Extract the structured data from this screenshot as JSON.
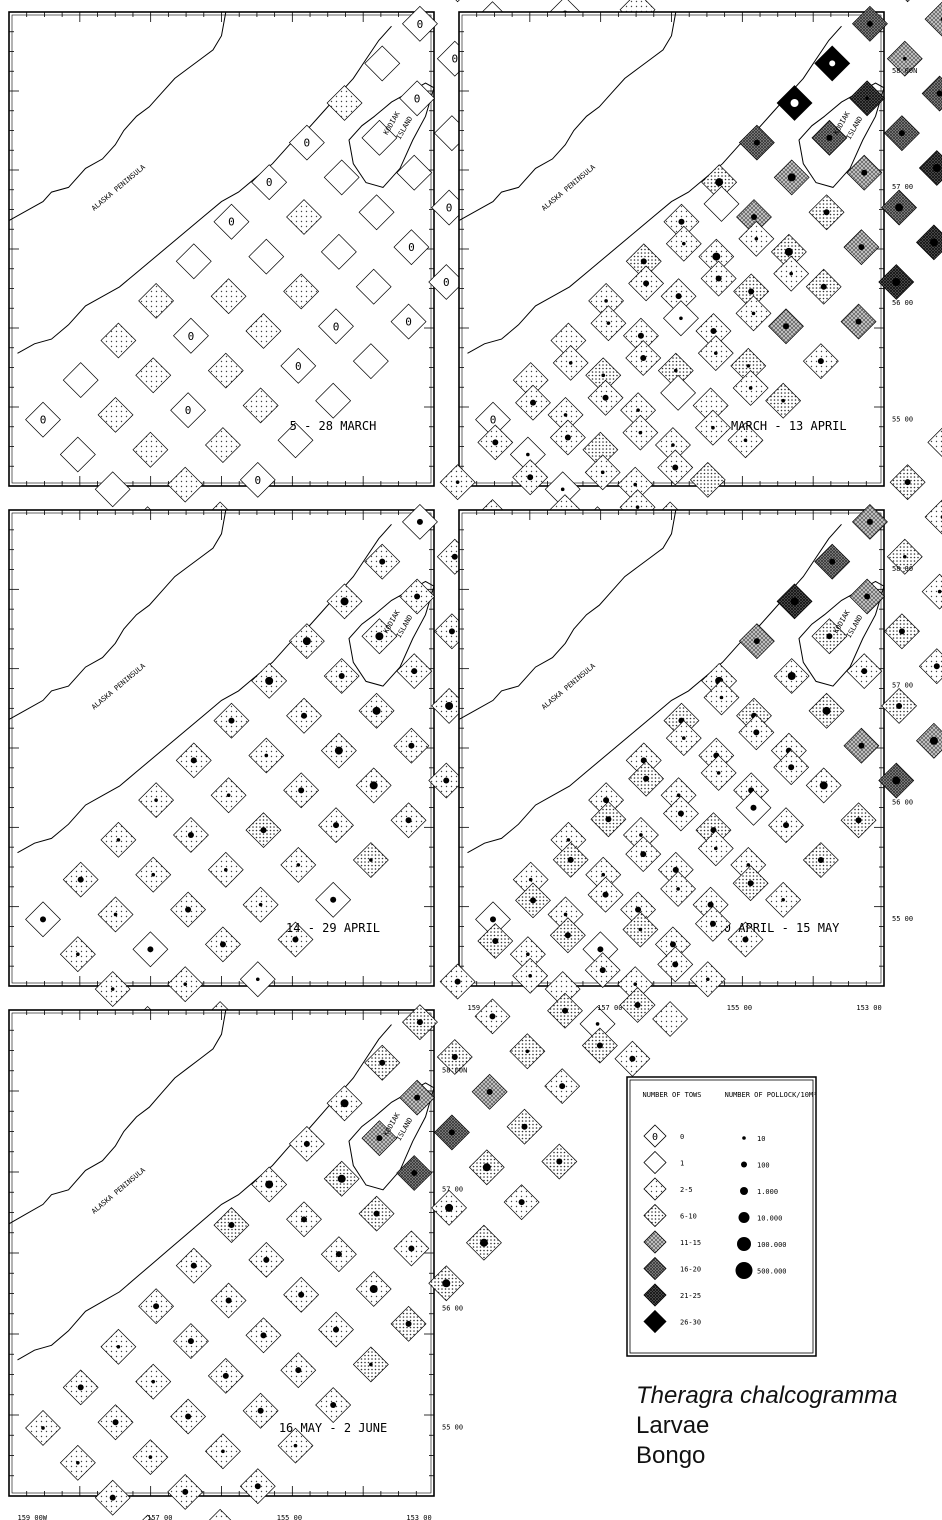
{
  "panels": [
    {
      "id": "panel-1",
      "date_label": "5 - 28 MARCH",
      "lat_labels": [],
      "lon_labels": [],
      "counts": [
        0,
        1,
        1,
        1,
        1,
        1,
        2,
        2,
        2,
        2,
        2,
        2,
        0,
        2,
        0,
        2,
        0,
        2,
        2,
        1,
        1,
        2,
        2,
        0,
        1,
        0,
        1,
        2,
        0,
        1,
        0,
        2,
        1,
        1,
        0,
        0,
        1,
        1,
        0,
        0,
        2,
        1,
        1,
        0,
        2,
        1,
        0,
        1,
        0,
        2,
        0,
        0,
        1,
        2,
        1,
        0,
        1,
        0,
        1,
        2,
        2,
        0,
        1,
        0,
        0,
        1,
        2,
        0,
        1,
        0,
        0,
        2,
        0,
        1,
        0,
        1,
        0,
        0,
        0,
        0,
        0,
        0,
        0,
        0,
        0,
        0
      ],
      "density": []
    },
    {
      "id": "panel-2",
      "date_label": "29 MARCH - 13 APRIL",
      "lat_labels": [
        "58 00N",
        "57 00",
        "56 00",
        "55 00"
      ],
      "lon_labels": [],
      "counts": [
        0,
        1,
        1,
        1,
        1,
        2,
        2,
        3,
        2,
        2,
        2,
        3,
        2,
        2,
        3,
        2,
        2,
        3,
        2,
        2,
        3,
        2,
        2,
        3,
        3,
        2,
        2,
        3,
        4,
        2,
        3,
        4,
        3,
        3,
        4,
        5,
        4,
        3,
        4,
        6,
        7,
        5,
        4,
        5,
        6,
        7,
        6,
        5,
        6,
        7,
        5,
        4,
        5,
        6,
        4,
        3,
        4,
        5,
        3,
        2,
        3,
        4,
        2,
        2,
        3,
        2,
        2,
        2,
        2,
        2,
        2,
        2,
        1,
        1,
        1,
        2,
        2,
        2,
        3,
        4,
        3,
        2,
        2,
        2,
        1,
        1
      ],
      "density": [
        0,
        1,
        1,
        0,
        0,
        0,
        1,
        0,
        1,
        1,
        0,
        1,
        1,
        1,
        0,
        1,
        2,
        1,
        0,
        1,
        2,
        2,
        2,
        1,
        1,
        2,
        3,
        2,
        2,
        2,
        3,
        2,
        3,
        2,
        2,
        2,
        3,
        2,
        2,
        3,
        3,
        2,
        2,
        3,
        3,
        2,
        1,
        2,
        3,
        2,
        2,
        1,
        2,
        2,
        1,
        1,
        1,
        1,
        0,
        1,
        0,
        1,
        0,
        0,
        0,
        0,
        1,
        0,
        1,
        0,
        0,
        0,
        0,
        0,
        0,
        0,
        0,
        0,
        0,
        0,
        0,
        0,
        0,
        0,
        0,
        0
      ]
    },
    {
      "id": "panel-3",
      "date_label": "14 - 29 APRIL",
      "lat_labels": [],
      "lon_labels": [],
      "counts": [
        1,
        2,
        2,
        2,
        2,
        2,
        2,
        1,
        2,
        2,
        2,
        2,
        2,
        2,
        1,
        2,
        2,
        2,
        2,
        2,
        2,
        2,
        3,
        2,
        1,
        2,
        2,
        2,
        2,
        3,
        2,
        2,
        2,
        2,
        2,
        2,
        2,
        2,
        2,
        2,
        2,
        2,
        2,
        2,
        2,
        2,
        2,
        2,
        2,
        2,
        1,
        2,
        2,
        2,
        2,
        2,
        2,
        2,
        2,
        2,
        2,
        2,
        2,
        2,
        2,
        2,
        2,
        2,
        2,
        2,
        2,
        2,
        2,
        1,
        2,
        2,
        1,
        2,
        2,
        2,
        2,
        2,
        1,
        2,
        2,
        2
      ],
      "density": [
        2,
        1,
        1,
        0,
        2,
        2,
        1,
        2,
        1,
        2,
        1,
        1,
        2,
        2,
        1,
        1,
        2,
        1,
        1,
        2,
        2,
        1,
        2,
        1,
        2,
        2,
        1,
        2,
        2,
        1,
        3,
        2,
        3,
        3,
        2,
        3,
        2,
        3,
        2,
        2,
        3,
        3,
        2,
        3,
        3,
        2,
        2,
        2,
        1,
        2,
        2,
        2,
        2,
        2,
        2,
        1,
        2,
        1,
        1,
        2,
        2,
        1,
        1,
        2,
        2,
        1,
        1,
        1,
        2,
        1,
        2,
        1,
        2,
        0,
        1,
        2,
        1,
        1,
        1,
        1,
        2,
        1,
        0,
        1,
        1,
        1
      ]
    },
    {
      "id": "panel-4",
      "date_label": "30 APRIL - 15 MAY",
      "lat_labels": [
        "58 00",
        "57 00",
        "56 00",
        "55 00"
      ],
      "lon_labels": [
        "159 00W",
        "157 00",
        "155 00",
        "153 00"
      ],
      "counts": [
        1,
        2,
        2,
        1,
        2,
        2,
        2,
        1,
        2,
        2,
        2,
        2,
        2,
        2,
        2,
        2,
        2,
        2,
        2,
        2,
        2,
        2,
        3,
        2,
        2,
        3,
        2,
        2,
        2,
        3,
        2,
        3,
        2,
        2,
        3,
        4,
        2,
        3,
        4,
        5,
        6,
        3,
        2,
        3,
        4,
        5,
        4,
        3,
        2,
        3,
        4,
        3,
        2,
        2,
        2,
        3,
        2,
        2,
        2,
        2,
        2,
        2,
        2,
        2,
        2,
        2,
        1,
        2,
        2,
        1,
        2,
        2,
        2,
        2,
        1,
        2,
        2,
        2,
        1,
        1,
        2,
        1,
        1,
        2,
        2,
        2
      ],
      "density": [
        2,
        1,
        0,
        1,
        2,
        1,
        1,
        2,
        1,
        0,
        1,
        1,
        2,
        2,
        1,
        2,
        1,
        2,
        2,
        2,
        2,
        1,
        2,
        1,
        1,
        2,
        2,
        2,
        2,
        2,
        3,
        2,
        2,
        3,
        2,
        2,
        3,
        3,
        2,
        3,
        3,
        2,
        2,
        2,
        3,
        2,
        2,
        2,
        2,
        2,
        2,
        1,
        1,
        2,
        1,
        2,
        1,
        2,
        1,
        2,
        1,
        2,
        2,
        1,
        2,
        1,
        2,
        1,
        1,
        2,
        1,
        0,
        2,
        1,
        0,
        1,
        2,
        1,
        1,
        1,
        2,
        1,
        0,
        1,
        1,
        1
      ]
    },
    {
      "id": "panel-5",
      "date_label": "16 MAY - 2 JUNE",
      "lat_labels": [
        "58 00N",
        "57 00",
        "56 00",
        "55 00"
      ],
      "lon_labels": [
        "159 00W",
        "157 00",
        "155 00",
        "153 00"
      ],
      "counts": [
        2,
        2,
        2,
        2,
        2,
        2,
        2,
        2,
        2,
        2,
        2,
        2,
        2,
        2,
        2,
        2,
        2,
        2,
        2,
        2,
        2,
        2,
        2,
        2,
        2,
        3,
        2,
        2,
        2,
        3,
        2,
        2,
        2,
        2,
        3,
        2,
        3,
        3,
        2,
        3,
        2,
        4,
        5,
        2,
        3,
        3,
        4,
        5,
        3,
        2,
        3,
        3,
        4,
        3,
        3,
        2,
        2,
        3,
        2,
        3,
        2,
        3,
        3,
        3,
        3,
        2,
        3,
        3,
        2,
        3,
        2,
        3,
        2,
        2,
        2,
        3,
        2,
        2,
        3,
        2,
        2,
        1,
        2,
        2,
        2,
        2
      ],
      "density": [
        1,
        1,
        2,
        1,
        1,
        2,
        2,
        1,
        2,
        2,
        1,
        1,
        2,
        1,
        2,
        2,
        2,
        2,
        2,
        1,
        2,
        2,
        2,
        2,
        2,
        2,
        2,
        2,
        2,
        1,
        3,
        2,
        2,
        3,
        2,
        2,
        3,
        2,
        2,
        3,
        3,
        2,
        2,
        3,
        3,
        2,
        2,
        2,
        3,
        2,
        2,
        2,
        2,
        2,
        2,
        2,
        2,
        1,
        2,
        2,
        1,
        2,
        2,
        2,
        2,
        2,
        2,
        2,
        2,
        1,
        2,
        2,
        2,
        1,
        2,
        2,
        2,
        1,
        2,
        1,
        1,
        2,
        1,
        2,
        2,
        1
      ]
    }
  ],
  "map_labels": {
    "peninsula": "ALASKA PENINSULA",
    "island": "KODIAK ISLAND"
  },
  "legend": {
    "tows_header": "NUMBER OF TOWS",
    "pollock_header": "NUMBER OF POLLOCK/10M²",
    "tows_classes": [
      "0",
      "1",
      "2-5",
      "6-10",
      "11-15",
      "16-20",
      "21-25",
      "26-30"
    ],
    "pollock_classes": [
      "10",
      "100",
      "1.000",
      "10.000",
      "100.000",
      "500.000"
    ]
  },
  "caption": {
    "species": "Theragra chalcogramma",
    "stage": "Larvae",
    "gear": "Bongo"
  }
}
